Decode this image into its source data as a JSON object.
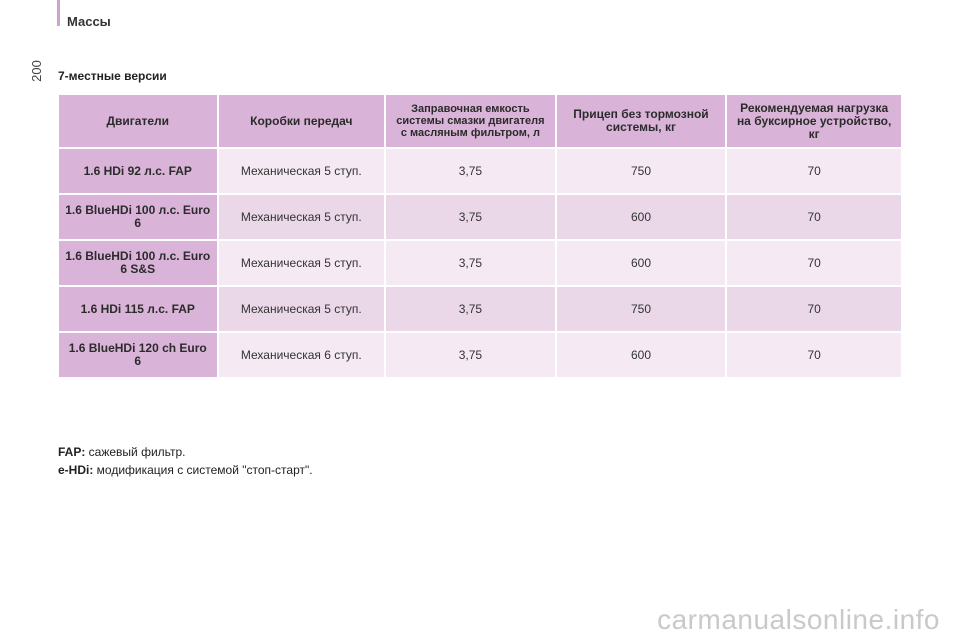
{
  "header": {
    "section_title": "Массы",
    "page_number": "200"
  },
  "subtitle": "7-местные версии",
  "table": {
    "columns": [
      "Двигатели",
      "Коробки передач",
      "Заправочная емкость системы смазки двигателя с масляным фильтром, л",
      "Прицеп без тормозной системы, кг",
      "Рекомендуемая нагрузка на буксирное устройство, кг"
    ],
    "rows": [
      {
        "engine": "1.6 HDi 92 л.с. FAP",
        "gearbox": "Механическая 5 ступ.",
        "oil": "3,75",
        "trailer": "750",
        "towbar": "70"
      },
      {
        "engine": "1.6 BlueHDi 100 л.с. Euro 6",
        "gearbox": "Механическая 5 ступ.",
        "oil": "3,75",
        "trailer": "600",
        "towbar": "70"
      },
      {
        "engine": "1.6 BlueHDi 100 л.с. Euro 6 S&S",
        "gearbox": "Механическая 5 ступ.",
        "oil": "3,75",
        "trailer": "600",
        "towbar": "70"
      },
      {
        "engine": "1.6 HDi 115 л.с. FAP",
        "gearbox": "Механическая 5 ступ.",
        "oil": "3,75",
        "trailer": "750",
        "towbar": "70"
      },
      {
        "engine": "1.6 BlueHDi 120 ch Euro 6",
        "gearbox": "Механическая 6 ступ.",
        "oil": "3,75",
        "trailer": "600",
        "towbar": "70"
      }
    ]
  },
  "footnotes": [
    {
      "term": "FAP:",
      "text": " сажевый фильтр."
    },
    {
      "term": "e-HDi:",
      "text": " модификация с системой \"стоп-старт\"."
    }
  ],
  "watermark": "carmanualsonline.info",
  "colors": {
    "header_bg": "#d9b4d8",
    "row_light": "#f5eaf4",
    "row_dark": "#ead8e9",
    "accent_rule": "#cfa3cf"
  }
}
